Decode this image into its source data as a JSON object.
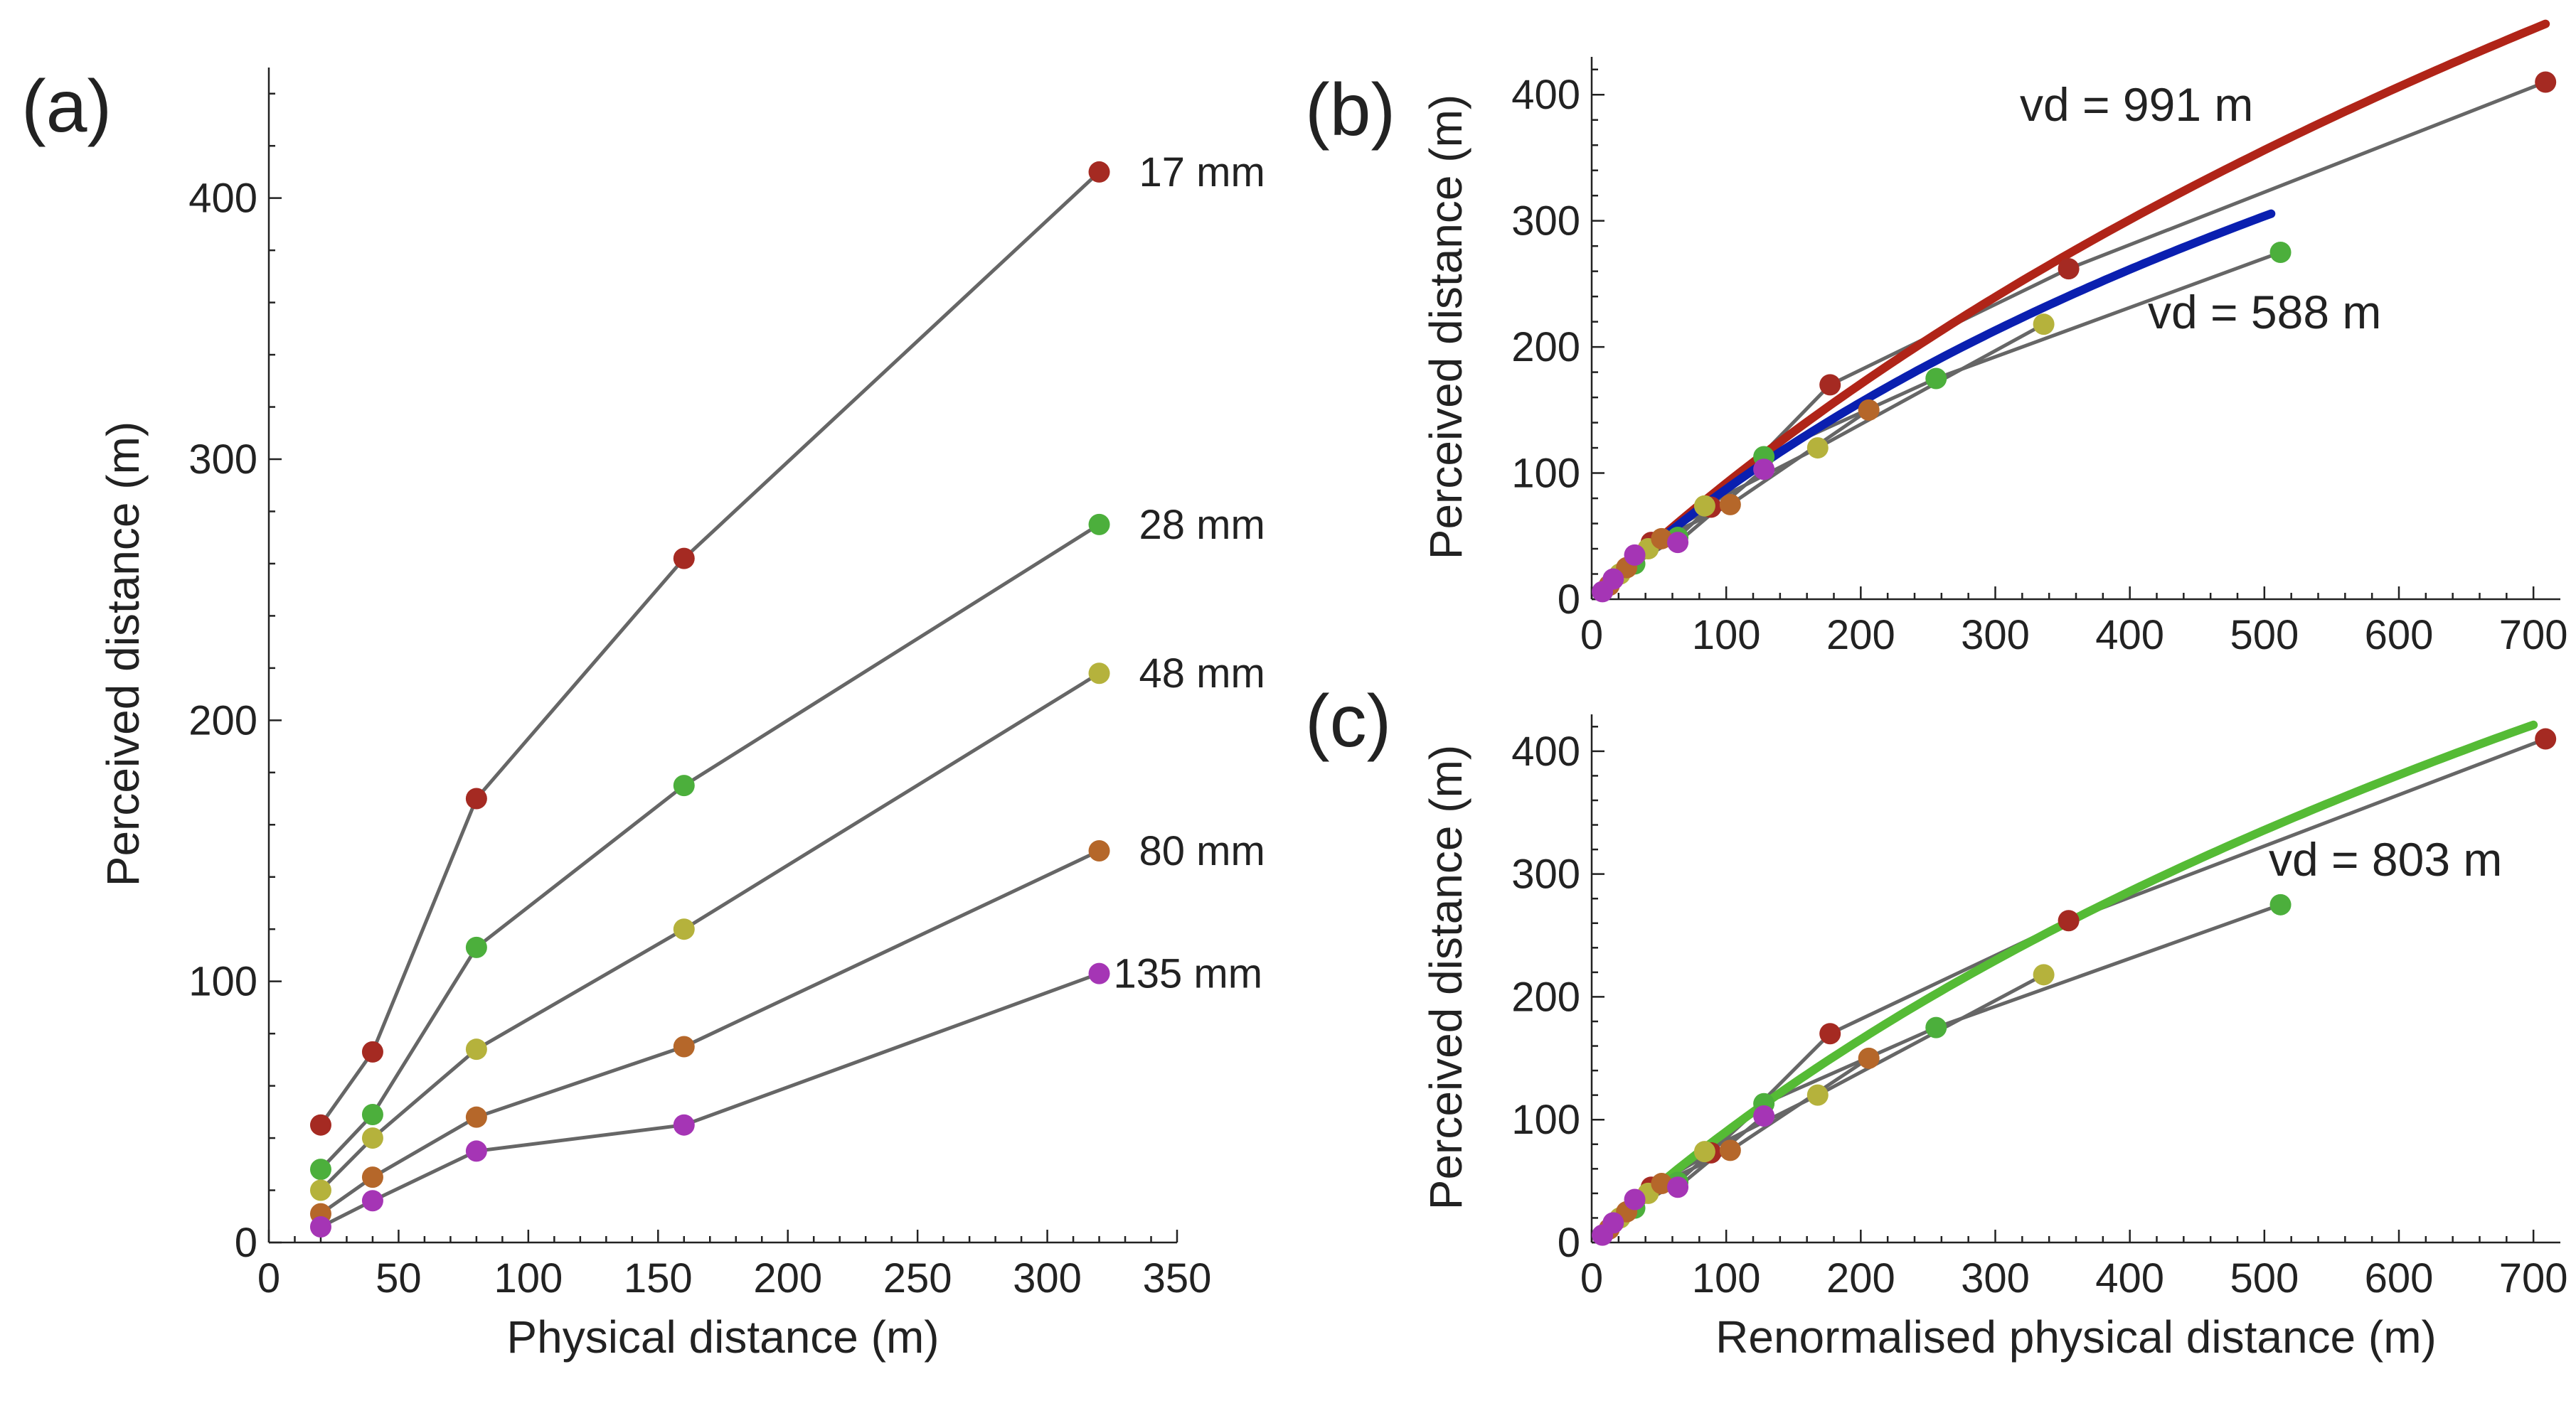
{
  "colors": {
    "17 mm": "#a52a22",
    "28 mm": "#4caf3c",
    "48 mm": "#b5b23c",
    "80 mm": "#b5672a",
    "135 mm": "#a535b5",
    "connector": "#666666",
    "fit_991": "#b02418",
    "fit_588": "#0a1fb0",
    "fit_803": "#55bb35"
  },
  "chart_data": [
    {
      "panel": "(a)",
      "type": "line",
      "title": "",
      "xlabel": "Physical distance (m)",
      "ylabel": "Perceived distance (m)",
      "xlim": [
        0,
        350
      ],
      "ylim": [
        0,
        450
      ],
      "xticks": [
        0,
        50,
        100,
        150,
        200,
        250,
        300,
        350
      ],
      "yticks": [
        0,
        100,
        200,
        300,
        400
      ],
      "grid": false,
      "x": [
        20,
        40,
        80,
        160,
        320
      ],
      "series": [
        {
          "name": "17 mm",
          "values": [
            45,
            73,
            170,
            262,
            410
          ]
        },
        {
          "name": "28 mm",
          "values": [
            28,
            49,
            113,
            175,
            275
          ]
        },
        {
          "name": "48 mm",
          "values": [
            20,
            40,
            74,
            120,
            218
          ]
        },
        {
          "name": "80 mm",
          "values": [
            11,
            25,
            48,
            75,
            150
          ]
        },
        {
          "name": "135 mm",
          "values": [
            6,
            16,
            35,
            45,
            103
          ]
        }
      ]
    },
    {
      "panel": "(b)",
      "type": "line",
      "title": "",
      "xlabel": "",
      "ylabel": "Perceived distance (m)",
      "xlim": [
        0,
        720
      ],
      "ylim": [
        0,
        430
      ],
      "xticks": [
        0,
        100,
        200,
        300,
        400,
        500,
        600,
        700
      ],
      "yticks": [
        0,
        100,
        200,
        300,
        400
      ],
      "grid": false,
      "series": [
        {
          "name": "17 mm",
          "x": [
            44.3,
            88.6,
            177.2,
            354.5,
            709
          ],
          "values": [
            45,
            73,
            170,
            262,
            410
          ]
        },
        {
          "name": "28 mm",
          "x": [
            32,
            64,
            128,
            256,
            512
          ],
          "values": [
            28,
            49,
            113,
            175,
            275
          ]
        },
        {
          "name": "48 mm",
          "x": [
            21,
            42,
            84,
            168,
            336
          ],
          "values": [
            20,
            40,
            74,
            120,
            218
          ]
        },
        {
          "name": "80 mm",
          "x": [
            13,
            26,
            52,
            103,
            206
          ],
          "values": [
            11,
            25,
            48,
            75,
            150
          ]
        },
        {
          "name": "135 mm",
          "x": [
            8,
            16,
            32,
            64,
            128
          ],
          "values": [
            6,
            16,
            35,
            45,
            103
          ]
        }
      ],
      "fits": [
        {
          "name": "vd = 991 m",
          "vd": 991,
          "x_range": [
            12,
            709
          ]
        },
        {
          "name": "vd = 588 m",
          "vd": 588,
          "x_range": [
            12,
            505
          ]
        }
      ]
    },
    {
      "panel": "(c)",
      "type": "line",
      "title": "",
      "xlabel": "Renormalised physical distance (m)",
      "ylabel": "Perceived distance (m)",
      "xlim": [
        0,
        720
      ],
      "ylim": [
        0,
        430
      ],
      "xticks": [
        0,
        100,
        200,
        300,
        400,
        500,
        600,
        700
      ],
      "yticks": [
        0,
        100,
        200,
        300,
        400
      ],
      "grid": false,
      "series": [
        {
          "name": "17 mm",
          "x": [
            44.3,
            88.6,
            177.2,
            354.5,
            709
          ],
          "values": [
            45,
            73,
            170,
            262,
            410
          ]
        },
        {
          "name": "28 mm",
          "x": [
            32,
            64,
            128,
            256,
            512
          ],
          "values": [
            28,
            49,
            113,
            175,
            275
          ]
        },
        {
          "name": "48 mm",
          "x": [
            21,
            42,
            84,
            168,
            336
          ],
          "values": [
            20,
            40,
            74,
            120,
            218
          ]
        },
        {
          "name": "80 mm",
          "x": [
            13,
            26,
            52,
            103,
            206
          ],
          "values": [
            11,
            25,
            48,
            75,
            150
          ]
        },
        {
          "name": "135 mm",
          "x": [
            8,
            16,
            32,
            64,
            128
          ],
          "values": [
            6,
            16,
            35,
            45,
            103
          ]
        }
      ],
      "fits": [
        {
          "name": "vd = 803 m",
          "vd": 803,
          "x_range": [
            12,
            700
          ]
        }
      ]
    }
  ]
}
